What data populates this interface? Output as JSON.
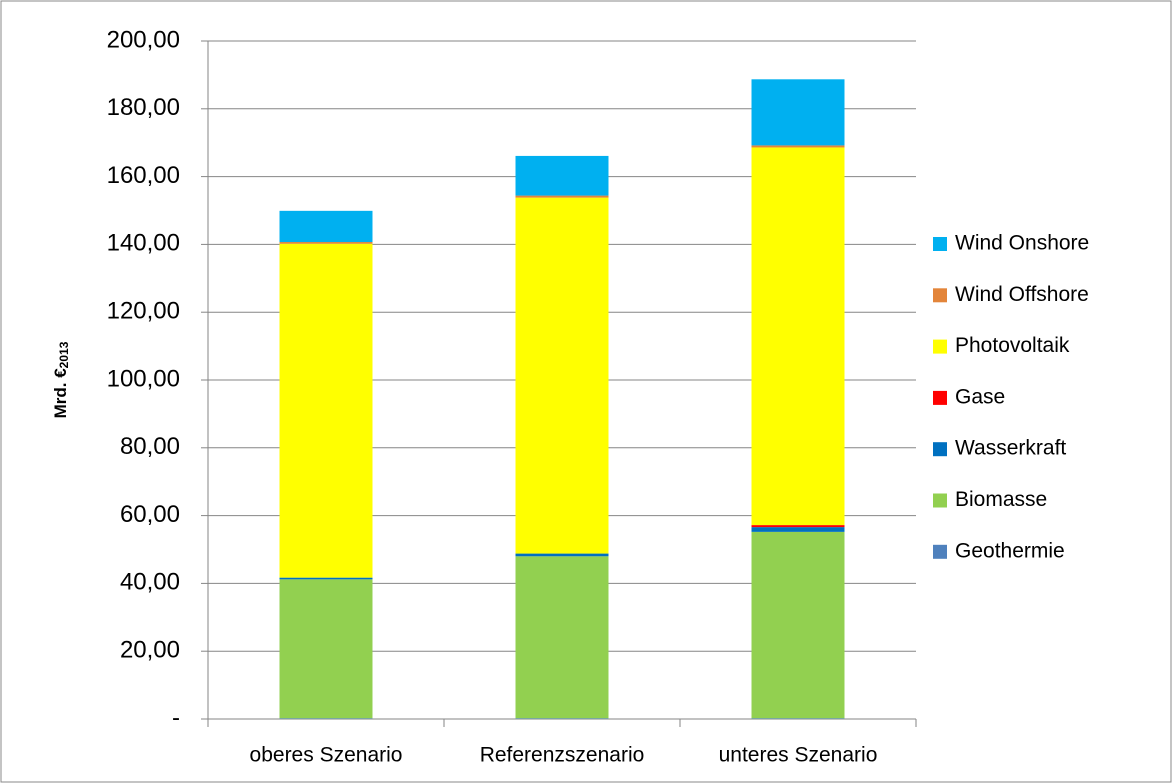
{
  "chart_data": {
    "type": "stacked-bar",
    "ylabel": {
      "text": "Mrd. €",
      "sub": "2013"
    },
    "categories": [
      "oberes Szenario",
      "Referenzszenario",
      "unteres Szenario"
    ],
    "series": [
      {
        "name": "Geothermie",
        "color": "#4f81bd",
        "values": [
          0.2,
          0.2,
          0.2
        ]
      },
      {
        "name": "Biomasse",
        "color": "#92d050",
        "values": [
          41.0,
          47.8,
          55.0
        ]
      },
      {
        "name": "Wasserkraft",
        "color": "#0070c0",
        "values": [
          0.5,
          0.8,
          1.4
        ]
      },
      {
        "name": "Gase",
        "color": "#ff0000",
        "values": [
          0.0,
          0.0,
          0.6
        ]
      },
      {
        "name": "Photovoltaik",
        "color": "#ffff00",
        "values": [
          98.5,
          105.0,
          111.4
        ]
      },
      {
        "name": "Wind Offshore",
        "color": "#e3853a",
        "values": [
          0.5,
          0.6,
          0.6
        ]
      },
      {
        "name": "Wind Onshore",
        "color": "#00b0f0",
        "values": [
          9.2,
          11.7,
          19.5
        ]
      }
    ],
    "ylim": [
      0,
      200
    ],
    "yticks": [
      {
        "value": 0,
        "label": "-"
      },
      {
        "value": 20,
        "label": "20,00"
      },
      {
        "value": 40,
        "label": "40,00"
      },
      {
        "value": 60,
        "label": "60,00"
      },
      {
        "value": 80,
        "label": "80,00"
      },
      {
        "value": 100,
        "label": "100,00"
      },
      {
        "value": 120,
        "label": "120,00"
      },
      {
        "value": 140,
        "label": "140,00"
      },
      {
        "value": 160,
        "label": "160,00"
      },
      {
        "value": 180,
        "label": "180,00"
      },
      {
        "value": 200,
        "label": "200,00"
      }
    ],
    "grid": true,
    "legend": "right"
  }
}
